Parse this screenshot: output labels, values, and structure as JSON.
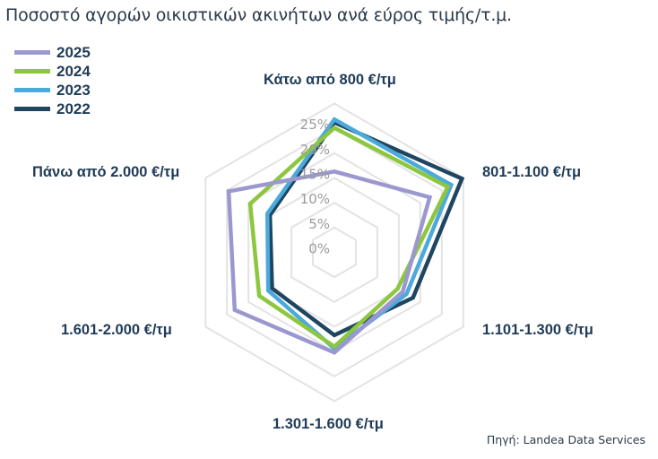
{
  "title": "Ποσοστό αγορών οικιστικών ακινήτων ανά εύρος τιμής/τ.μ.",
  "source": "Πηγή: Landea Data Services",
  "legend": [
    {
      "label": "2025",
      "color": "#9b98cf"
    },
    {
      "label": "2024",
      "color": "#8dc63f"
    },
    {
      "label": "2023",
      "color": "#4ba9dc"
    },
    {
      "label": "2022",
      "color": "#1f4560"
    }
  ],
  "axes": [
    {
      "label": "Κάτω από 800 €/τμ"
    },
    {
      "label": "801-1.100 €/τμ"
    },
    {
      "label": "1.101-1.300 €/τμ"
    },
    {
      "label": "1.301-1.600 €/τμ"
    },
    {
      "label": "1.601-2.000 €/τμ"
    },
    {
      "label": "Πάνω από 2.000 €/τμ"
    }
  ],
  "ticks": [
    "0%",
    "5%",
    "10%",
    "15%",
    "20%",
    "25%"
  ],
  "chart_data": {
    "type": "radar",
    "title": "Ποσοστό αγορών οικιστικών ακινήτων ανά εύρος τιμής/τ.μ.",
    "categories": [
      "Κάτω από 800 €/τμ",
      "801-1.100 €/τμ",
      "1.101-1.300 €/τμ",
      "1.301-1.600 €/τμ",
      "1.601-2.000 €/τμ",
      "Πάνω από 2.000 €/τμ"
    ],
    "series": [
      {
        "name": "2025",
        "color": "#9b98cf",
        "values": [
          16.3,
          22.2,
          15.9,
          20.2,
          23.2,
          24.6
        ]
      },
      {
        "name": "2024",
        "color": "#8dc63f",
        "values": [
          25.1,
          26.4,
          14.7,
          19.0,
          17.5,
          19.6
        ]
      },
      {
        "name": "2023",
        "color": "#4ba9dc",
        "values": [
          26.8,
          27.2,
          16.8,
          19.4,
          15.4,
          15.6
        ]
      },
      {
        "name": "2022",
        "color": "#1f4560",
        "values": [
          26.2,
          29.7,
          18.3,
          16.7,
          14.5,
          15.0
        ]
      }
    ],
    "tick_labels": [
      "0%",
      "5%",
      "10%",
      "15%",
      "20%",
      "25%"
    ],
    "rlim": [
      0,
      30
    ],
    "grid": true,
    "legend_position": "top-left",
    "source": "Πηγή: Landea Data Services"
  }
}
